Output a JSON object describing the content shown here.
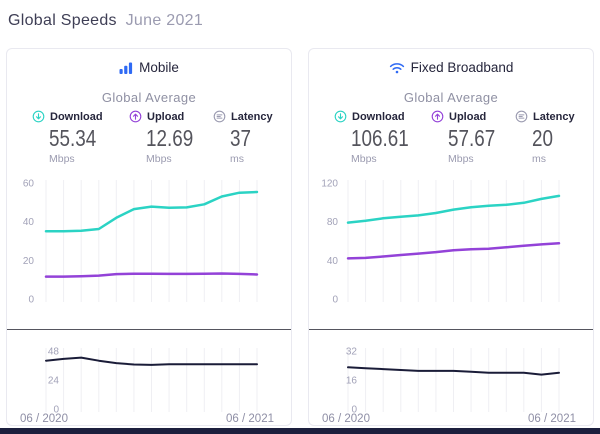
{
  "page": {
    "title_main": "Global Speeds",
    "title_period": "June 2021"
  },
  "colors": {
    "download_accent": "#2BD3C4",
    "upload_accent": "#9342D8",
    "latency_icon_gray": "#9B9BB0",
    "latency_line": "#1A1C38",
    "brand_blue": "#2F6AF4",
    "gridline": "#EFEFF3",
    "tick_text": "#A2A2B8",
    "divider": "#55555E",
    "footer_bar": "#1C1F3D"
  },
  "cards": [
    {
      "title": "Mobile",
      "subtitle": "Global Average",
      "icon": "mobile-signal-bars-icon",
      "stats": [
        {
          "label": "Download",
          "value": "55.34",
          "unit": "Mbps"
        },
        {
          "label": "Upload",
          "value": "12.69",
          "unit": "Mbps"
        },
        {
          "label": "Latency",
          "value": "37",
          "unit": "ms"
        }
      ],
      "x_axis": {
        "start": "06 / 2020",
        "end": "06 / 2021"
      }
    },
    {
      "title": "Fixed Broadband",
      "subtitle": "Global Average",
      "icon": "wifi-icon",
      "stats": [
        {
          "label": "Download",
          "value": "106.61",
          "unit": "Mbps"
        },
        {
          "label": "Upload",
          "value": "57.67",
          "unit": "Mbps"
        },
        {
          "label": "Latency",
          "value": "20",
          "unit": "ms"
        }
      ],
      "x_axis": {
        "start": "06 / 2020",
        "end": "06 / 2021"
      }
    }
  ],
  "chart_data": [
    {
      "id": "mobile-speeds",
      "type": "line",
      "title": "Mobile Global Average speeds, monthly",
      "x_start_label": "06 / 2020",
      "x_end_label": "06 / 2021",
      "points_per_series": 13,
      "ylim": [
        0,
        60
      ],
      "yticks": [
        0,
        20,
        40,
        60
      ],
      "grid": "vertical-monthly",
      "legend": "none",
      "series": [
        {
          "name": "Download (Mbps)",
          "color": "#2BD3C4",
          "values": [
            35,
            35,
            35.3,
            36.2,
            42,
            46.5,
            47.8,
            47.2,
            47.4,
            49,
            53,
            55,
            55.34
          ]
        },
        {
          "name": "Upload (Mbps)",
          "color": "#9342D8",
          "values": [
            11.6,
            11.6,
            11.8,
            12.1,
            12.9,
            13.1,
            13.1,
            13,
            13,
            13.1,
            13.2,
            13,
            12.69
          ]
        }
      ]
    },
    {
      "id": "mobile-latency",
      "type": "line",
      "title": "Mobile Global Average latency, monthly",
      "x_start_label": "06 / 2020",
      "x_end_label": "06 / 2021",
      "points_per_series": 13,
      "ylim": [
        0,
        48
      ],
      "yticks": [
        0,
        24,
        48
      ],
      "grid": "vertical-monthly",
      "legend": "none",
      "series": [
        {
          "name": "Latency (ms)",
          "color": "#1A1C38",
          "values": [
            40,
            41.5,
            42.5,
            40,
            38,
            36.8,
            36.5,
            37,
            37,
            37,
            37,
            37,
            37
          ]
        }
      ]
    },
    {
      "id": "fixed-speeds",
      "type": "line",
      "title": "Fixed Broadband Global Average speeds, monthly",
      "x_start_label": "06 / 2020",
      "x_end_label": "06 / 2021",
      "points_per_series": 13,
      "ylim": [
        0,
        120
      ],
      "yticks": [
        0,
        40,
        80,
        120
      ],
      "grid": "vertical-monthly",
      "legend": "none",
      "series": [
        {
          "name": "Download (Mbps)",
          "color": "#2BD3C4",
          "values": [
            79,
            81,
            83.5,
            85,
            86.5,
            89,
            92.5,
            95,
            96.5,
            97.5,
            99.5,
            103.5,
            106.61
          ]
        },
        {
          "name": "Upload (Mbps)",
          "color": "#9342D8",
          "values": [
            42,
            42.5,
            44,
            45.5,
            47,
            48.5,
            50.5,
            51.5,
            52,
            53.5,
            55,
            56.5,
            57.67
          ]
        }
      ]
    },
    {
      "id": "fixed-latency",
      "type": "line",
      "title": "Fixed Broadband Global Average latency, monthly",
      "x_start_label": "06 / 2020",
      "x_end_label": "06 / 2021",
      "points_per_series": 13,
      "ylim": [
        0,
        32
      ],
      "yticks": [
        0,
        16,
        32
      ],
      "grid": "vertical-monthly",
      "legend": "none",
      "series": [
        {
          "name": "Latency (ms)",
          "color": "#1A1C38",
          "values": [
            23,
            22.5,
            22,
            21.5,
            21,
            21,
            21,
            20.5,
            20,
            20,
            20,
            19,
            20
          ]
        }
      ]
    }
  ]
}
